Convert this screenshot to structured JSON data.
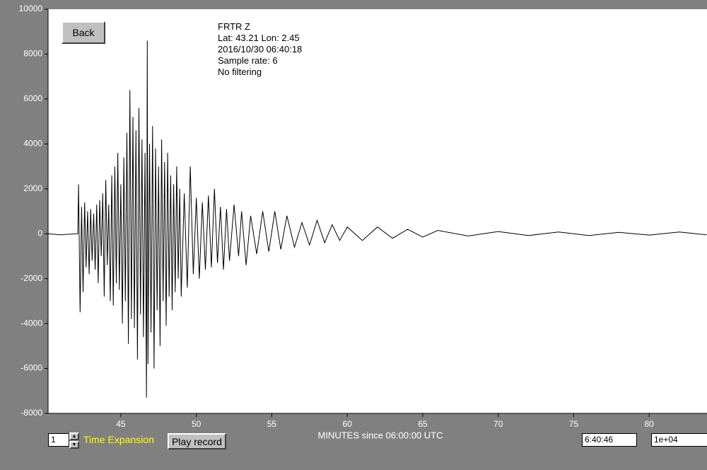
{
  "chart_data": {
    "type": "line",
    "x_label": "MINUTES since 06:00:00 UTC",
    "color": "#000000",
    "x": [
      40.2,
      41,
      42,
      42.15,
      42.2,
      42.3,
      42.4,
      42.5,
      42.6,
      42.7,
      42.8,
      42.9,
      43.0,
      43.1,
      43.2,
      43.3,
      43.4,
      43.5,
      43.6,
      43.7,
      43.8,
      43.9,
      44.0,
      44.1,
      44.2,
      44.3,
      44.4,
      44.5,
      44.6,
      44.7,
      44.8,
      44.9,
      45.0,
      45.1,
      45.2,
      45.3,
      45.4,
      45.5,
      45.6,
      45.7,
      45.8,
      45.9,
      46.0,
      46.1,
      46.2,
      46.3,
      46.4,
      46.5,
      46.6,
      46.7,
      46.75,
      46.8,
      46.9,
      47.0,
      47.1,
      47.2,
      47.3,
      47.4,
      47.5,
      47.6,
      47.7,
      47.8,
      47.9,
      48.0,
      48.1,
      48.2,
      48.3,
      48.4,
      48.5,
      48.6,
      48.7,
      48.8,
      48.9,
      49.0,
      49.2,
      49.4,
      49.6,
      49.8,
      50.0,
      50.2,
      50.4,
      50.6,
      50.8,
      51.0,
      51.2,
      51.4,
      51.6,
      51.8,
      52.0,
      52.2,
      52.5,
      52.8,
      53.0,
      53.3,
      53.6,
      54.0,
      54.4,
      54.8,
      55.2,
      55.6,
      56.0,
      56.5,
      57.0,
      57.5,
      58.0,
      58.5,
      59.0,
      59.5,
      60.0,
      61.0,
      62.0,
      63.0,
      64.0,
      65.0,
      66.0,
      68.0,
      70.0,
      72.0,
      74.0,
      76.0,
      78.0,
      80.0,
      82.0,
      83.8
    ],
    "values": [
      0,
      -50,
      0,
      0,
      2200,
      -3500,
      1200,
      -2600,
      1400,
      -1500,
      1000,
      -1800,
      1100,
      -1200,
      900,
      -1600,
      1300,
      -2200,
      1500,
      -1000,
      1800,
      -2800,
      2400,
      -1400,
      1300,
      -3000,
      2600,
      -3200,
      3000,
      -2200,
      3600,
      -2500,
      2200,
      -4000,
      3400,
      -3000,
      4500,
      -4900,
      6400,
      -3800,
      5200,
      -4200,
      4600,
      -5600,
      5600,
      -3600,
      4200,
      -4600,
      3600,
      -7300,
      8600,
      -5800,
      4000,
      -4400,
      4800,
      -6000,
      3800,
      -3400,
      3000,
      -5000,
      4200,
      -3000,
      3200,
      -4100,
      3600,
      -2800,
      2600,
      -3400,
      2200,
      -2600,
      3000,
      -2000,
      2000,
      -2800,
      1800,
      -2400,
      3000,
      -1800,
      1600,
      -2000,
      1400,
      -1600,
      1700,
      -1500,
      2000,
      -1300,
      1200,
      -1600,
      1100,
      -1200,
      1300,
      -1000,
      1000,
      -1400,
      800,
      -900,
      1000,
      -800,
      1000,
      -700,
      800,
      -600,
      500,
      -500,
      600,
      -400,
      400,
      -300,
      300,
      -300,
      300,
      -200,
      200,
      -150,
      150,
      -100,
      100,
      -80,
      80,
      -80,
      60,
      -60,
      80,
      -50
    ],
    "xlim": [
      40.18,
      83.83
    ],
    "xticks": [
      45,
      50,
      55,
      60,
      65,
      70,
      75,
      80
    ],
    "ylim": [
      -8000,
      10000
    ],
    "yticks": [
      10000,
      8000,
      6000,
      4000,
      2000,
      0,
      -2000,
      -4000,
      -6000,
      -8000
    ]
  },
  "controls": {
    "back": "Back",
    "info": [
      "FRTR  Z",
      "Lat: 43.21 Lon: 2.45",
      "2016/10/30 06:40:18",
      "Sample rate: 6",
      "No filtering"
    ],
    "time_expansion_value": "1",
    "time_expansion_label": "Time Expansion",
    "play": "Play record",
    "time_field": "6:40:46",
    "scale_field": "1e+04"
  }
}
